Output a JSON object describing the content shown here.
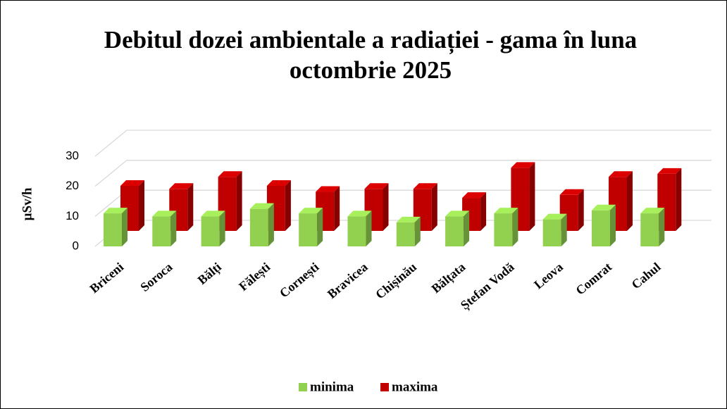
{
  "chart_data": {
    "type": "bar3d",
    "title": "Debitul dozei ambientale a radiației - gama în luna octombrie 2025",
    "y_label": "µSv/h",
    "categories": [
      "Briceni",
      "Soroca",
      "Bălți",
      "Fălești",
      "Cornești",
      "Bravicea",
      "Chișinău",
      "Bălțata",
      "Ștefan Vodă",
      "Leova",
      "Comrat",
      "Cahul"
    ],
    "series": [
      {
        "name": "minima",
        "color": "#92d050",
        "values": [
          11,
          10,
          10,
          12.5,
          11,
          10,
          8,
          10,
          11,
          9,
          12,
          11
        ]
      },
      {
        "name": "maxima",
        "color": "#c00000",
        "values": [
          15,
          14,
          18,
          15,
          13,
          14,
          14,
          11,
          21,
          12,
          18,
          19
        ]
      }
    ],
    "ylim": [
      0,
      30
    ],
    "yticks": [
      0,
      10,
      20,
      30
    ],
    "grid": true
  }
}
